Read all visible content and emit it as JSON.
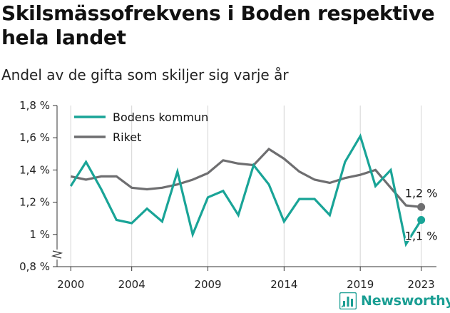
{
  "title": "Skilsmässofrekvens i Boden respektive hela landet",
  "subtitle": "Andel av de gifta som skiljer sig varje år",
  "brand": "Newsworthy",
  "colors": {
    "boden": "#19a497",
    "riket": "#6e6e70",
    "grid": "#d4d4d4",
    "axis": "#333333"
  },
  "chart_data": {
    "type": "line",
    "x": [
      2000,
      2001,
      2002,
      2003,
      2004,
      2005,
      2006,
      2007,
      2008,
      2009,
      2010,
      2011,
      2012,
      2013,
      2014,
      2015,
      2016,
      2017,
      2018,
      2019,
      2020,
      2021,
      2022,
      2023
    ],
    "series": [
      {
        "name": "Bodens kommun",
        "color": "#19a497",
        "values": [
          1.3,
          1.45,
          1.28,
          1.09,
          1.07,
          1.16,
          1.08,
          1.39,
          1.0,
          1.23,
          1.27,
          1.12,
          1.43,
          1.31,
          1.08,
          1.22,
          1.22,
          1.12,
          1.45,
          1.61,
          1.3,
          1.4,
          0.94,
          1.09
        ],
        "end_label": "1,1 %"
      },
      {
        "name": "Riket",
        "color": "#6e6e70",
        "values": [
          1.36,
          1.34,
          1.36,
          1.36,
          1.29,
          1.28,
          1.29,
          1.31,
          1.34,
          1.38,
          1.46,
          1.44,
          1.43,
          1.53,
          1.47,
          1.39,
          1.34,
          1.32,
          1.35,
          1.37,
          1.4,
          1.29,
          1.18,
          1.17
        ],
        "end_label": "1,2 %"
      }
    ],
    "x_ticks": [
      2000,
      2004,
      2009,
      2014,
      2019,
      2023
    ],
    "x_tick_labels": [
      "2000",
      "2004",
      "2009",
      "2014",
      "2019",
      "2023"
    ],
    "y_ticks": [
      0.8,
      1.0,
      1.2,
      1.4,
      1.6,
      1.8
    ],
    "y_tick_labels": [
      "0,8 %",
      "1 %",
      "1,2 %",
      "1,4 %",
      "1,6 %",
      "1,8 %"
    ],
    "ylim": [
      0.8,
      1.8
    ],
    "xlim": [
      1999.1,
      2024
    ],
    "y_axis_break": true,
    "grid": "vertical",
    "legend_placement": "top-left"
  }
}
